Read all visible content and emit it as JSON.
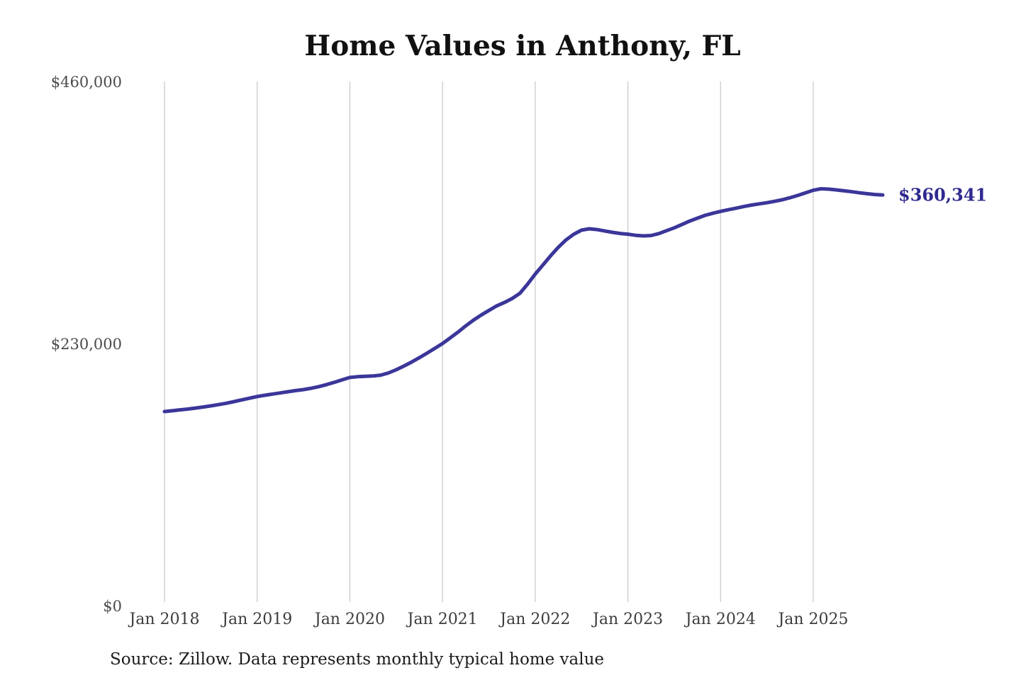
{
  "title": "Home Values in Anthony, FL",
  "source_note": "Source: Zillow. Data represents monthly typical home value",
  "colors": {
    "line": "#3b3699",
    "end_label": "#2e2a8f",
    "gridline": "#cccccc",
    "axis_text": "#4b4b4b",
    "title_text": "#111111",
    "source_text": "#1b1b1b",
    "background": "#ffffff"
  },
  "chart_data": {
    "type": "line",
    "title": "Home Values in Anthony, FL",
    "xlabel": "",
    "ylabel": "",
    "ylim": [
      0,
      460000
    ],
    "grid": "vertical-only",
    "legend": "none",
    "y_ticks": [
      {
        "value": 460000,
        "label": "$460,000"
      },
      {
        "value": 230000,
        "label": "$230,000"
      },
      {
        "value": 0,
        "label": "$0"
      }
    ],
    "x_ticks": [
      {
        "month_index": 0,
        "label": "Jan 2018"
      },
      {
        "month_index": 12,
        "label": "Jan 2019"
      },
      {
        "month_index": 24,
        "label": "Jan 2020"
      },
      {
        "month_index": 36,
        "label": "Jan 2021"
      },
      {
        "month_index": 48,
        "label": "Jan 2022"
      },
      {
        "month_index": 60,
        "label": "Jan 2023"
      },
      {
        "month_index": 72,
        "label": "Jan 2024"
      },
      {
        "month_index": 84,
        "label": "Jan 2025"
      }
    ],
    "last_value": 360341,
    "last_value_label": "$360,341",
    "series": [
      {
        "name": "Monthly typical home value",
        "months": [
          "2018-01",
          "2018-02",
          "2018-03",
          "2018-04",
          "2018-05",
          "2018-06",
          "2018-07",
          "2018-08",
          "2018-09",
          "2018-10",
          "2018-11",
          "2018-12",
          "2019-01",
          "2019-02",
          "2019-03",
          "2019-04",
          "2019-05",
          "2019-06",
          "2019-07",
          "2019-08",
          "2019-09",
          "2019-10",
          "2019-11",
          "2019-12",
          "2020-01",
          "2020-02",
          "2020-03",
          "2020-04",
          "2020-05",
          "2020-06",
          "2020-07",
          "2020-08",
          "2020-09",
          "2020-10",
          "2020-11",
          "2020-12",
          "2021-01",
          "2021-02",
          "2021-03",
          "2021-04",
          "2021-05",
          "2021-06",
          "2021-07",
          "2021-08",
          "2021-09",
          "2021-10",
          "2021-11",
          "2021-12",
          "2022-01",
          "2022-02",
          "2022-03",
          "2022-04",
          "2022-05",
          "2022-06",
          "2022-07",
          "2022-08",
          "2022-09",
          "2022-10",
          "2022-11",
          "2022-12",
          "2023-01",
          "2023-02",
          "2023-03",
          "2023-04",
          "2023-05",
          "2023-06",
          "2023-07",
          "2023-08",
          "2023-09",
          "2023-10",
          "2023-11",
          "2023-12",
          "2024-01",
          "2024-02",
          "2024-03",
          "2024-04",
          "2024-05",
          "2024-06",
          "2024-07",
          "2024-08",
          "2024-09",
          "2024-10",
          "2024-11",
          "2024-12",
          "2025-01",
          "2025-02",
          "2025-03",
          "2025-04",
          "2025-05",
          "2025-06",
          "2025-07",
          "2025-08",
          "2025-09",
          "2025-10"
        ],
        "values": [
          170300,
          171000,
          171800,
          172500,
          173400,
          174300,
          175300,
          176400,
          177600,
          179000,
          180500,
          182000,
          183500,
          184600,
          185700,
          186700,
          187700,
          188700,
          189600,
          190800,
          192200,
          194000,
          196000,
          198200,
          200200,
          200900,
          201300,
          201500,
          202300,
          204200,
          207000,
          210300,
          213800,
          217600,
          221600,
          225800,
          230000,
          235000,
          240000,
          245500,
          250500,
          255000,
          259000,
          263000,
          266000,
          269500,
          274000,
          282000,
          291000,
          299000,
          307000,
          314500,
          321000,
          326000,
          329500,
          330700,
          330000,
          328800,
          327600,
          326600,
          326000,
          325000,
          324500,
          324800,
          326500,
          329000,
          331500,
          334500,
          337500,
          340000,
          342500,
          344300,
          346000,
          347400,
          348800,
          350200,
          351500,
          352600,
          353600,
          354800,
          356200,
          358000,
          360000,
          362300,
          364500,
          365800,
          365500,
          364800,
          364000,
          363200,
          362300,
          361500,
          360800,
          360341
        ]
      }
    ]
  }
}
